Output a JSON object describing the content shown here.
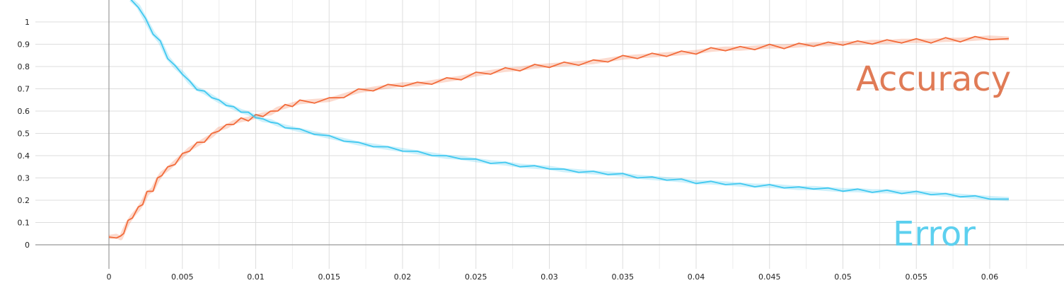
{
  "chart_data": {
    "type": "line",
    "title": "",
    "xlabel": "",
    "ylabel": "",
    "xlim": [
      -0.005,
      0.065
    ],
    "ylim": [
      -0.1,
      1.1
    ],
    "x_ticks": [
      0,
      0.005,
      0.01,
      0.015,
      0.02,
      0.025,
      0.03,
      0.035,
      0.04,
      0.045,
      0.05,
      0.055,
      0.06
    ],
    "y_ticks": [
      0,
      0.1,
      0.2,
      0.3,
      0.4,
      0.5,
      0.6,
      0.7,
      0.8,
      0.9,
      1
    ],
    "grid": true,
    "series": [
      {
        "name": "Accuracy",
        "color": "#f26b3a",
        "label_color": "#e07b56",
        "x": [
          0,
          0.0005,
          0.0008,
          0.001,
          0.0013,
          0.0016,
          0.002,
          0.0023,
          0.0026,
          0.003,
          0.0033,
          0.0036,
          0.004,
          0.0045,
          0.005,
          0.0055,
          0.006,
          0.0065,
          0.007,
          0.0075,
          0.008,
          0.0085,
          0.009,
          0.0095,
          0.01,
          0.0105,
          0.011,
          0.0115,
          0.012,
          0.0125,
          0.013,
          0.014,
          0.015,
          0.016,
          0.017,
          0.018,
          0.019,
          0.02,
          0.021,
          0.022,
          0.023,
          0.024,
          0.025,
          0.026,
          0.027,
          0.028,
          0.029,
          0.03,
          0.031,
          0.032,
          0.033,
          0.034,
          0.035,
          0.036,
          0.037,
          0.038,
          0.039,
          0.04,
          0.041,
          0.042,
          0.043,
          0.044,
          0.045,
          0.046,
          0.047,
          0.048,
          0.049,
          0.05,
          0.051,
          0.052,
          0.053,
          0.054,
          0.055,
          0.056,
          0.057,
          0.058,
          0.059,
          0.06,
          0.0613
        ],
        "values": [
          0.035,
          0.04,
          0.03,
          0.06,
          0.1,
          0.13,
          0.16,
          0.19,
          0.23,
          0.25,
          0.29,
          0.32,
          0.34,
          0.37,
          0.4,
          0.43,
          0.45,
          0.47,
          0.49,
          0.52,
          0.53,
          0.55,
          0.56,
          0.565,
          0.575,
          0.585,
          0.59,
          0.61,
          0.62,
          0.63,
          0.64,
          0.645,
          0.65,
          0.67,
          0.69,
          0.7,
          0.71,
          0.72,
          0.72,
          0.73,
          0.74,
          0.75,
          0.765,
          0.775,
          0.785,
          0.79,
          0.8,
          0.805,
          0.81,
          0.815,
          0.82,
          0.83,
          0.84,
          0.845,
          0.85,
          0.855,
          0.86,
          0.865,
          0.875,
          0.88,
          0.88,
          0.885,
          0.89,
          0.89,
          0.895,
          0.9,
          0.9,
          0.905,
          0.905,
          0.91,
          0.91,
          0.915,
          0.915,
          0.915,
          0.92,
          0.92,
          0.925,
          0.93,
          0.925
        ]
      },
      {
        "name": "Error",
        "color": "#40c8f0",
        "label_color": "#5dd0ef",
        "x": [
          0.0015,
          0.002,
          0.0025,
          0.003,
          0.0035,
          0.004,
          0.0045,
          0.005,
          0.0055,
          0.006,
          0.0065,
          0.007,
          0.0075,
          0.008,
          0.0085,
          0.009,
          0.0095,
          0.01,
          0.0105,
          0.011,
          0.0115,
          0.012,
          0.013,
          0.014,
          0.015,
          0.016,
          0.017,
          0.018,
          0.019,
          0.02,
          0.021,
          0.022,
          0.023,
          0.024,
          0.025,
          0.026,
          0.027,
          0.028,
          0.029,
          0.03,
          0.031,
          0.032,
          0.033,
          0.034,
          0.035,
          0.036,
          0.037,
          0.038,
          0.039,
          0.04,
          0.041,
          0.042,
          0.043,
          0.044,
          0.045,
          0.046,
          0.047,
          0.048,
          0.049,
          0.05,
          0.051,
          0.052,
          0.053,
          0.054,
          0.055,
          0.056,
          0.057,
          0.058,
          0.059,
          0.06,
          0.0613
        ],
        "values": [
          1.1,
          1.07,
          1.01,
          0.95,
          0.91,
          0.84,
          0.8,
          0.77,
          0.73,
          0.7,
          0.685,
          0.665,
          0.645,
          0.63,
          0.615,
          0.6,
          0.59,
          0.575,
          0.56,
          0.555,
          0.54,
          0.53,
          0.515,
          0.5,
          0.485,
          0.47,
          0.455,
          0.445,
          0.435,
          0.425,
          0.415,
          0.405,
          0.395,
          0.39,
          0.38,
          0.37,
          0.365,
          0.355,
          0.35,
          0.345,
          0.335,
          0.33,
          0.325,
          0.32,
          0.315,
          0.305,
          0.3,
          0.295,
          0.29,
          0.28,
          0.28,
          0.275,
          0.27,
          0.265,
          0.265,
          0.26,
          0.255,
          0.255,
          0.25,
          0.245,
          0.245,
          0.24,
          0.24,
          0.235,
          0.235,
          0.23,
          0.225,
          0.22,
          0.215,
          0.21,
          0.205
        ]
      }
    ]
  }
}
